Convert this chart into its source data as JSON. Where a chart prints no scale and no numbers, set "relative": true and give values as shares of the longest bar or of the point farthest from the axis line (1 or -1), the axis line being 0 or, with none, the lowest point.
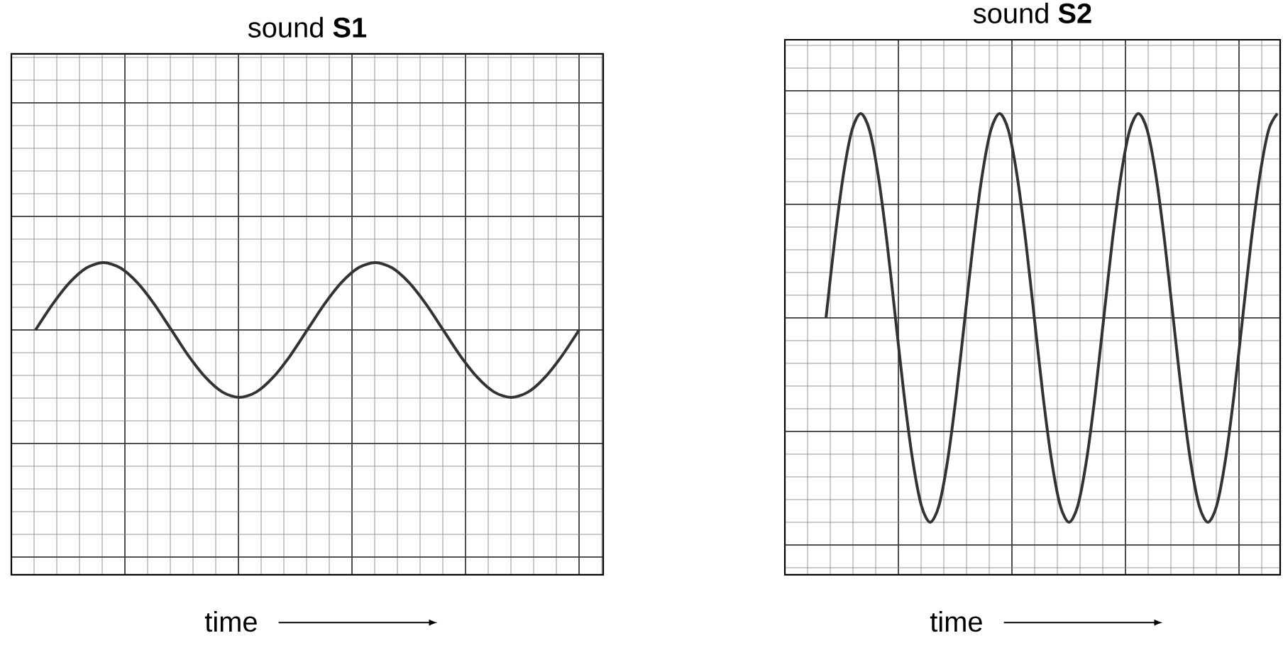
{
  "chart_data": [
    {
      "type": "line",
      "title": "sound **S1**",
      "xlabel": "time",
      "relative": true,
      "grid": true,
      "categories": [
        null,
        null,
        null,
        null,
        null,
        null,
        null,
        null,
        null,
        null,
        null,
        null,
        null,
        null,
        null,
        null,
        null,
        null,
        null,
        null,
        null,
        null,
        null,
        null,
        null,
        null,
        null,
        null,
        null,
        null,
        null,
        null,
        null
      ],
      "series": [
        {
          "color": "#333333",
          "values": [
            0.5,
            0.69,
            0.85,
            0.96,
            1,
            0.96,
            0.85,
            0.69,
            0.5,
            0.31,
            0.15,
            0.04,
            0,
            0.04,
            0.15,
            0.31,
            0.5,
            0.69,
            0.85,
            0.96,
            1,
            0.96,
            0.85,
            0.69,
            0.5,
            0.31,
            0.15,
            0.04,
            0,
            0.04,
            0.15,
            0.31,
            0.5
          ]
        }
      ]
    },
    {
      "type": "line",
      "title": "sound **S2**",
      "xlabel": "time",
      "relative": true,
      "grid": true,
      "categories": [
        null,
        null,
        null,
        null,
        null,
        null,
        null,
        null,
        null,
        null,
        null,
        null,
        null,
        null,
        null,
        null,
        null,
        null,
        null,
        null,
        null,
        null,
        null,
        null,
        null,
        null,
        null,
        null,
        null,
        null,
        null,
        null,
        null,
        null,
        null,
        null,
        null,
        null,
        null,
        null,
        null,
        null,
        null,
        null,
        null,
        null,
        null,
        null,
        null,
        null,
        null,
        null,
        null
      ],
      "series": [
        {
          "color": "#333333",
          "values": [
            0.5,
            0.69,
            0.85,
            0.96,
            1,
            0.96,
            0.85,
            0.69,
            0.5,
            0.31,
            0.15,
            0.04,
            0,
            0.04,
            0.15,
            0.31,
            0.5,
            0.69,
            0.85,
            0.96,
            1,
            0.96,
            0.85,
            0.69,
            0.5,
            0.31,
            0.15,
            0.04,
            0,
            0.04,
            0.15,
            0.31,
            0.5,
            0.69,
            0.85,
            0.96,
            1,
            0.96,
            0.85,
            0.69,
            0.5,
            0.31,
            0.15,
            0.04,
            0,
            0.04,
            0.15,
            0.31,
            0.5,
            0.69,
            0.85,
            0.96,
            1
          ]
        }
      ]
    }
  ]
}
